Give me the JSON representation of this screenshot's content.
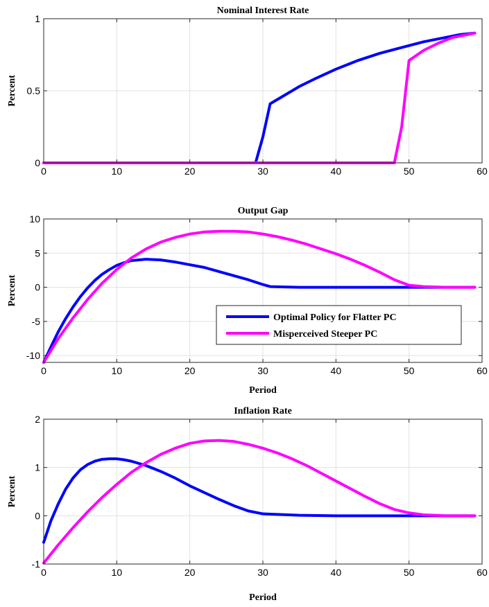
{
  "chart_data": [
    {
      "type": "line",
      "title": "Nominal Interest Rate",
      "xlabel": "",
      "ylabel": "Percent",
      "xlim": [
        0,
        60
      ],
      "ylim": [
        0,
        1
      ],
      "xticks": [
        0,
        10,
        20,
        30,
        40,
        50,
        60
      ],
      "yticks": [
        0,
        0.5,
        1
      ],
      "ytick_labels": [
        "0",
        "0.5",
        "1"
      ],
      "grid": true,
      "legend": null,
      "series": [
        {
          "color": "#0000ff",
          "x": [
            0,
            5,
            10,
            15,
            20,
            25,
            29,
            30,
            31,
            33,
            35,
            37,
            40,
            43,
            46,
            49,
            52,
            55,
            57,
            59
          ],
          "y": [
            0,
            0,
            0,
            0,
            0,
            0,
            0,
            0.18,
            0.41,
            0.47,
            0.53,
            0.58,
            0.65,
            0.71,
            0.76,
            0.8,
            0.84,
            0.87,
            0.89,
            0.9
          ]
        },
        {
          "color": "#ff00ff",
          "x": [
            0,
            10,
            20,
            30,
            40,
            45,
            48,
            49,
            50,
            52,
            54,
            56,
            58,
            59
          ],
          "y": [
            0,
            0,
            0,
            0,
            0,
            0,
            0,
            0.25,
            0.71,
            0.78,
            0.83,
            0.87,
            0.89,
            0.9
          ]
        }
      ]
    },
    {
      "type": "line",
      "title": "Output Gap",
      "xlabel": "Period",
      "ylabel": "Percent",
      "xlim": [
        0,
        60
      ],
      "ylim": [
        -11,
        10
      ],
      "xticks": [
        0,
        10,
        20,
        30,
        40,
        50,
        60
      ],
      "yticks": [
        -10,
        -5,
        0,
        5,
        10
      ],
      "ytick_labels": [
        "-10",
        "-5",
        "0",
        "5",
        "10"
      ],
      "grid": true,
      "legend": "center-right",
      "series": [
        {
          "name": "Optimal Policy for Flatter PC",
          "color": "#0000ff",
          "x": [
            0,
            1,
            2,
            3,
            4,
            5,
            6,
            7,
            8,
            9,
            10,
            11,
            12,
            13,
            14,
            15,
            16,
            18,
            20,
            22,
            24,
            26,
            28,
            30,
            31,
            33,
            35,
            40,
            45,
            50,
            55,
            59
          ],
          "y": [
            -11,
            -8.7,
            -6.5,
            -4.6,
            -2.9,
            -1.4,
            -0.1,
            1.0,
            1.9,
            2.6,
            3.2,
            3.6,
            3.9,
            4.0,
            4.1,
            4.05,
            4.0,
            3.7,
            3.3,
            2.9,
            2.3,
            1.7,
            1.1,
            0.4,
            0.1,
            0.05,
            0,
            0,
            0,
            0,
            0,
            0
          ]
        },
        {
          "name": "Misperceived Steeper PC",
          "color": "#ff00ff",
          "x": [
            0,
            2,
            4,
            6,
            8,
            10,
            12,
            14,
            16,
            18,
            20,
            22,
            24,
            26,
            28,
            30,
            32,
            34,
            36,
            38,
            40,
            42,
            44,
            46,
            48,
            50,
            52,
            55,
            59
          ],
          "y": [
            -11,
            -7.5,
            -4.5,
            -1.8,
            0.6,
            2.6,
            4.3,
            5.6,
            6.6,
            7.3,
            7.8,
            8.1,
            8.2,
            8.2,
            8.1,
            7.8,
            7.4,
            6.9,
            6.3,
            5.6,
            4.9,
            4.1,
            3.2,
            2.2,
            1.1,
            0.3,
            0.1,
            0,
            0
          ]
        }
      ]
    },
    {
      "type": "line",
      "title": "Inflation Rate",
      "xlabel": "Period",
      "ylabel": "Percent",
      "xlim": [
        0,
        60
      ],
      "ylim": [
        -1,
        2
      ],
      "xticks": [
        0,
        10,
        20,
        30,
        40,
        50,
        60
      ],
      "yticks": [
        -1,
        0,
        1,
        2
      ],
      "ytick_labels": [
        "-1",
        "0",
        "1",
        "2"
      ],
      "grid": true,
      "legend": null,
      "series": [
        {
          "color": "#0000ff",
          "x": [
            0,
            1,
            2,
            3,
            4,
            5,
            6,
            7,
            8,
            9,
            10,
            11,
            12,
            14,
            16,
            18,
            20,
            22,
            24,
            26,
            28,
            30,
            35,
            40,
            45,
            50,
            55,
            59
          ],
          "y": [
            -0.55,
            -0.1,
            0.25,
            0.55,
            0.78,
            0.95,
            1.06,
            1.13,
            1.17,
            1.18,
            1.18,
            1.16,
            1.13,
            1.04,
            0.92,
            0.78,
            0.62,
            0.48,
            0.34,
            0.21,
            0.1,
            0.04,
            0.01,
            0,
            0,
            0,
            0,
            0
          ]
        },
        {
          "color": "#ff00ff",
          "x": [
            0,
            2,
            4,
            6,
            8,
            10,
            12,
            14,
            16,
            18,
            20,
            22,
            24,
            26,
            28,
            30,
            32,
            34,
            36,
            38,
            40,
            42,
            44,
            46,
            48,
            50,
            52,
            55,
            59
          ],
          "y": [
            -0.98,
            -0.6,
            -0.25,
            0.08,
            0.38,
            0.65,
            0.9,
            1.1,
            1.27,
            1.4,
            1.5,
            1.55,
            1.56,
            1.54,
            1.48,
            1.4,
            1.3,
            1.18,
            1.04,
            0.88,
            0.72,
            0.56,
            0.4,
            0.25,
            0.13,
            0.06,
            0.02,
            0,
            0
          ]
        }
      ]
    }
  ]
}
